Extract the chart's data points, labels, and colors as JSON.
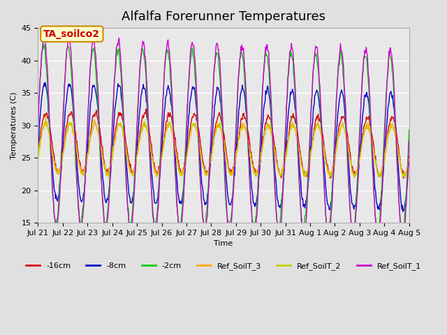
{
  "title": "Alfalfa Forerunner Temperatures",
  "xlabel": "Time",
  "ylabel": "Temperatures (C)",
  "ylim": [
    15,
    45
  ],
  "annotation_text": "TA_soilco2",
  "annotation_color": "#cc0000",
  "annotation_bg": "#ffffcc",
  "annotation_border": "#cc8800",
  "series": [
    {
      "label": "-16cm",
      "color": "#dd0000"
    },
    {
      "label": "-8cm",
      "color": "#0000cc"
    },
    {
      "label": "-2cm",
      "color": "#00cc00"
    },
    {
      "label": "Ref_SoilT_3",
      "color": "#ffaa00"
    },
    {
      "label": "Ref_SoilT_2",
      "color": "#cccc00"
    },
    {
      "label": "Ref_SoilT_1",
      "color": "#cc00cc"
    }
  ],
  "x_tick_labels": [
    "Jul 21",
    "Jul 22",
    "Jul 23",
    "Jul 24",
    "Jul 25",
    "Jul 26",
    "Jul 27",
    "Jul 28",
    "Jul 29",
    "Jul 30",
    "Jul 31",
    "Aug 1",
    "Aug 2",
    "Aug 3",
    "Aug 4",
    "Aug 5"
  ],
  "n_days": 15,
  "points_per_day": 48,
  "background_color": "#e0e0e0",
  "plot_bg_color": "#e8e8e8",
  "title_fontsize": 13,
  "axis_fontsize": 8,
  "legend_fontsize": 8
}
